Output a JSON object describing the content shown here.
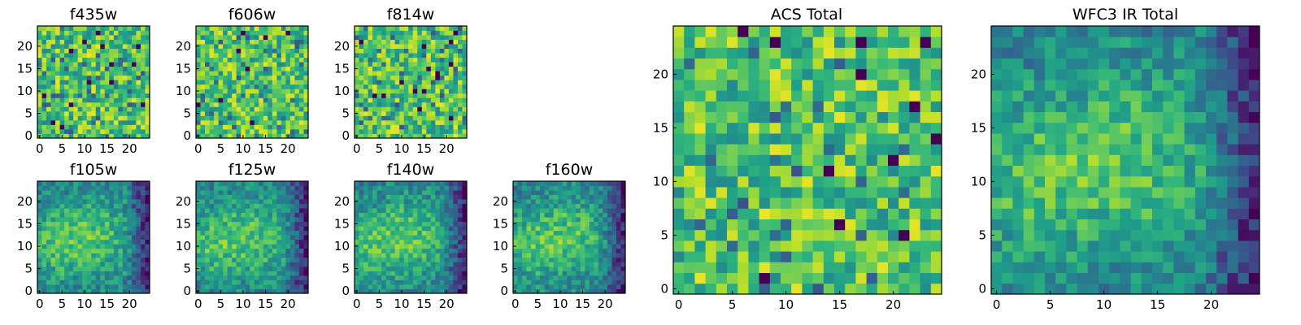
{
  "chart_data": [
    {
      "type": "heatmap",
      "title": "f435w",
      "pattern": "noise",
      "xticks": [
        "0",
        "5",
        "10",
        "15",
        "20"
      ],
      "yticks": [
        "0",
        "5",
        "10",
        "15",
        "20"
      ],
      "grid": [
        25,
        25
      ]
    },
    {
      "type": "heatmap",
      "title": "f606w",
      "pattern": "noise",
      "xticks": [
        "0",
        "5",
        "10",
        "15",
        "20"
      ],
      "yticks": [
        "0",
        "5",
        "10",
        "15",
        "20"
      ],
      "grid": [
        25,
        25
      ]
    },
    {
      "type": "heatmap",
      "title": "f814w",
      "pattern": "noise",
      "xticks": [
        "0",
        "5",
        "10",
        "15",
        "20"
      ],
      "yticks": [
        "0",
        "5",
        "10",
        "15",
        "20"
      ],
      "grid": [
        25,
        25
      ]
    },
    {
      "type": "heatmap",
      "title": "f105w",
      "pattern": "blob",
      "xticks": [
        "0",
        "5",
        "10",
        "15",
        "20"
      ],
      "yticks": [
        "0",
        "5",
        "10",
        "15",
        "20"
      ],
      "grid": [
        25,
        25
      ]
    },
    {
      "type": "heatmap",
      "title": "f125w",
      "pattern": "blob",
      "xticks": [
        "0",
        "5",
        "10",
        "15",
        "20"
      ],
      "yticks": [
        "0",
        "5",
        "10",
        "15",
        "20"
      ],
      "grid": [
        25,
        25
      ]
    },
    {
      "type": "heatmap",
      "title": "f140w",
      "pattern": "blob",
      "xticks": [
        "0",
        "5",
        "10",
        "15",
        "20"
      ],
      "yticks": [
        "0",
        "5",
        "10",
        "15",
        "20"
      ],
      "grid": [
        25,
        25
      ]
    },
    {
      "type": "heatmap",
      "title": "f160w",
      "pattern": "blob",
      "xticks": [
        "0",
        "5",
        "10",
        "15",
        "20"
      ],
      "yticks": [
        "0",
        "5",
        "10",
        "15",
        "20"
      ],
      "grid": [
        25,
        25
      ]
    },
    {
      "type": "heatmap",
      "title": "ACS Total",
      "pattern": "noise",
      "xticks": [
        "0",
        "5",
        "10",
        "15",
        "20"
      ],
      "yticks": [
        "0",
        "5",
        "10",
        "15",
        "20"
      ],
      "grid": [
        25,
        25
      ]
    },
    {
      "type": "heatmap",
      "title": "WFC3 IR Total",
      "pattern": "blob",
      "xticks": [
        "0",
        "5",
        "10",
        "15",
        "20"
      ],
      "yticks": [
        "0",
        "5",
        "10",
        "15",
        "20"
      ],
      "grid": [
        25,
        25
      ]
    }
  ],
  "colormap": "viridis",
  "colors": {
    "low": "#440154",
    "mid": "#21918c",
    "high": "#fde725"
  }
}
